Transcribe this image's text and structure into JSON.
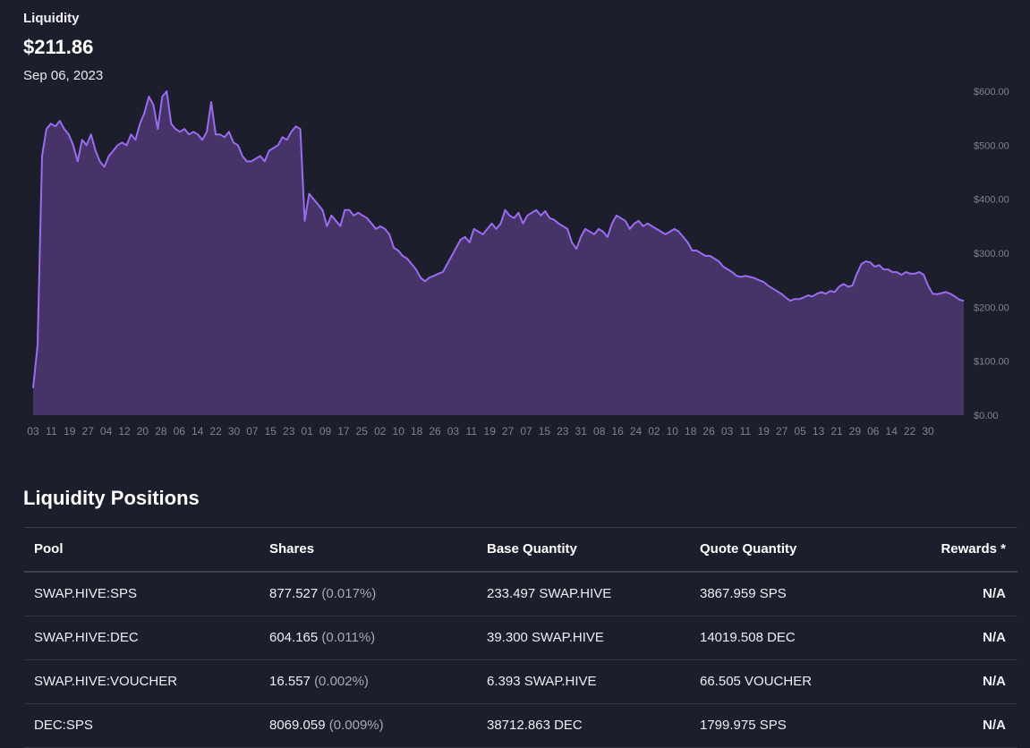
{
  "summary": {
    "label": "Liquidity",
    "value": "$211.86",
    "date": "Sep 06, 2023"
  },
  "chart_data": {
    "type": "area",
    "title": "",
    "xlabel": "",
    "ylabel": "",
    "ylim": [
      0,
      600
    ],
    "y_ticks": [
      "$600.00",
      "$500.00",
      "$400.00",
      "$300.00",
      "$200.00",
      "$100.00",
      "$0.00"
    ],
    "x_ticks": [
      "03",
      "11",
      "19",
      "27",
      "04",
      "12",
      "20",
      "28",
      "06",
      "14",
      "22",
      "30",
      "07",
      "15",
      "23",
      "01",
      "09",
      "17",
      "25",
      "02",
      "10",
      "18",
      "26",
      "03",
      "11",
      "19",
      "27",
      "07",
      "15",
      "23",
      "31",
      "08",
      "16",
      "24",
      "02",
      "10",
      "18",
      "26",
      "03",
      "11",
      "19",
      "27",
      "05",
      "13",
      "21",
      "29",
      "06",
      "14",
      "22",
      "30"
    ],
    "colors": {
      "line": "#9a6cf0",
      "fill": "#463368",
      "axis_text": "#7e8190"
    },
    "grid": false,
    "series": [
      {
        "values": [
          50,
          130,
          480,
          530,
          540,
          535,
          545,
          530,
          520,
          500,
          470,
          510,
          500,
          520,
          490,
          470,
          460,
          480,
          490,
          500,
          505,
          500,
          520,
          510,
          540,
          560,
          590,
          575,
          530,
          590,
          600,
          540,
          530,
          525,
          530,
          520,
          525,
          520,
          510,
          525,
          580,
          520,
          520,
          515,
          525,
          505,
          500,
          480,
          470,
          470,
          475,
          480,
          470,
          490,
          495,
          500,
          515,
          510,
          525,
          535,
          530,
          360,
          410,
          400,
          390,
          380,
          350,
          370,
          360,
          350,
          380,
          380,
          370,
          375,
          370,
          365,
          355,
          345,
          350,
          345,
          335,
          310,
          305,
          295,
          290,
          280,
          270,
          255,
          248,
          255,
          258,
          262,
          265,
          280,
          295,
          310,
          325,
          330,
          320,
          345,
          340,
          335,
          345,
          355,
          345,
          355,
          380,
          370,
          365,
          375,
          355,
          370,
          375,
          380,
          370,
          378,
          365,
          362,
          355,
          350,
          345,
          320,
          308,
          330,
          345,
          340,
          335,
          345,
          340,
          330,
          355,
          370,
          365,
          360,
          345,
          355,
          360,
          350,
          355,
          350,
          345,
          340,
          335,
          340,
          345,
          340,
          330,
          320,
          305,
          305,
          300,
          295,
          295,
          290,
          285,
          275,
          270,
          265,
          258,
          256,
          258,
          256,
          254,
          250,
          247,
          240,
          235,
          230,
          225,
          218,
          212,
          215,
          215,
          218,
          222,
          220,
          225,
          228,
          225,
          230,
          228,
          238,
          243,
          238,
          240,
          262,
          280,
          285,
          283,
          275,
          278,
          270,
          270,
          265,
          265,
          260,
          265,
          262,
          262,
          265,
          260,
          240,
          225,
          224,
          226,
          228,
          225,
          220,
          214,
          211.86
        ]
      }
    ]
  },
  "positions": {
    "title": "Liquidity Positions",
    "columns": [
      "Pool",
      "Shares",
      "Base Quantity",
      "Quote Quantity",
      "Rewards *"
    ],
    "rows": [
      {
        "pool": "SWAP.HIVE:SPS",
        "shares": "877.527",
        "pct": "(0.017%)",
        "base": "233.497 SWAP.HIVE",
        "quote": "3867.959 SPS",
        "rewards": "N/A"
      },
      {
        "pool": "SWAP.HIVE:DEC",
        "shares": "604.165",
        "pct": "(0.011%)",
        "base": "39.300 SWAP.HIVE",
        "quote": "14019.508 DEC",
        "rewards": "N/A"
      },
      {
        "pool": "SWAP.HIVE:VOUCHER",
        "shares": "16.557",
        "pct": "(0.002%)",
        "base": "6.393 SWAP.HIVE",
        "quote": "66.505 VOUCHER",
        "rewards": "N/A"
      },
      {
        "pool": "DEC:SPS",
        "shares": "8069.059",
        "pct": "(0.009%)",
        "base": "38712.863 DEC",
        "quote": "1799.975 SPS",
        "rewards": "N/A"
      }
    ]
  }
}
